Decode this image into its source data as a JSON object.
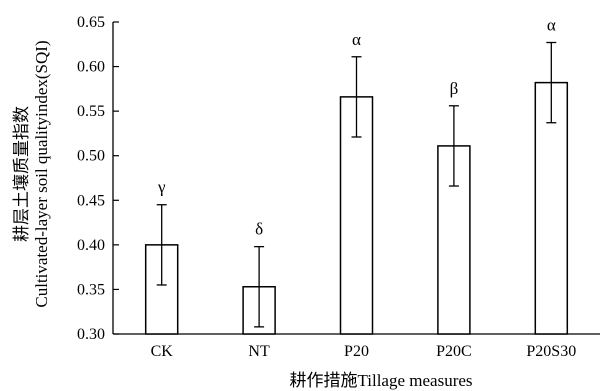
{
  "chart_data": {
    "type": "bar",
    "title": "",
    "xlabel": "耕作措施Tillage measures",
    "ylabel_cn": "耕层土壤质量指数",
    "ylabel_en": "Cultivated-layer soil qualityindex(SQI)",
    "categories": [
      "CK",
      "NT",
      "P20",
      "P20C",
      "P20S30"
    ],
    "values": [
      0.4,
      0.353,
      0.566,
      0.511,
      0.582
    ],
    "errors": [
      0.045,
      0.045,
      0.045,
      0.045,
      0.045
    ],
    "significance": [
      "γ",
      "δ",
      "α",
      "β",
      "α"
    ],
    "ylim": [
      0.3,
      0.65
    ],
    "yticks": [
      "0.30",
      "0.35",
      "0.40",
      "0.45",
      "0.50",
      "0.55",
      "0.60",
      "0.65"
    ],
    "grid": false,
    "legend": "none",
    "colors": {
      "bar_fill": "#ffffff",
      "bar_stroke": "#000000"
    }
  }
}
